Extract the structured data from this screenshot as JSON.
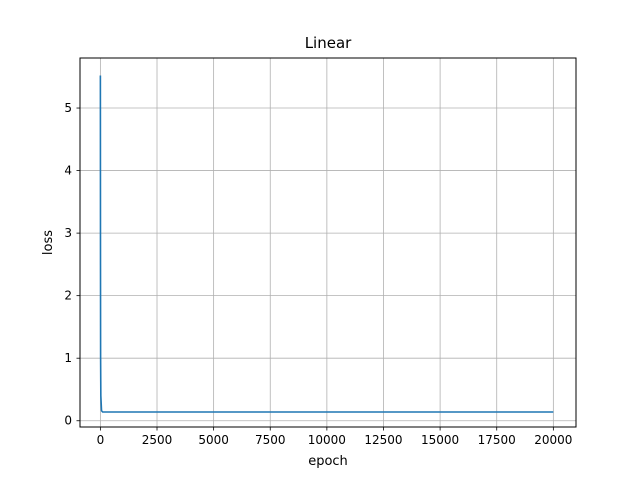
{
  "chart_data": {
    "type": "line",
    "title": "Linear",
    "xlabel": "epoch",
    "ylabel": "loss",
    "xlim": [
      -900,
      21000
    ],
    "ylim": [
      -0.1,
      5.8
    ],
    "xticks": [
      0,
      2500,
      5000,
      7500,
      10000,
      12500,
      15000,
      17500,
      20000
    ],
    "yticks": [
      0,
      1,
      2,
      3,
      4,
      5
    ],
    "grid": true,
    "legend": "none",
    "colors": {
      "line": "#1f77b4",
      "grid": "#b0b0b0",
      "axes": "#000000"
    },
    "series": [
      {
        "x": [
          0,
          5,
          10,
          20,
          50,
          100,
          200,
          500,
          1000,
          5000,
          10000,
          15000,
          20000
        ],
        "y": [
          5.52,
          2.5,
          1.0,
          0.4,
          0.16,
          0.14,
          0.14,
          0.14,
          0.14,
          0.14,
          0.14,
          0.14,
          0.14
        ]
      }
    ]
  }
}
